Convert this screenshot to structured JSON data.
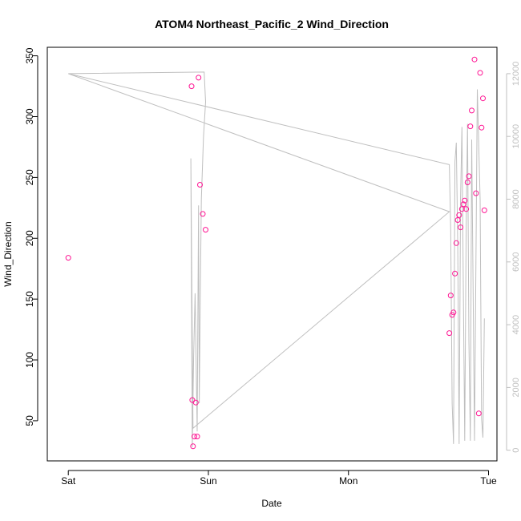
{
  "chart_data": {
    "type": "scatter",
    "title": "ATOM4 Northeast_Pacific_2 Wind_Direction",
    "xlabel": "Date",
    "ylabel": "Wind_Direction",
    "x_ticks": [
      "Sat",
      "Sun",
      "Mon",
      "Tue"
    ],
    "x_tick_values": [
      0,
      1,
      2,
      3
    ],
    "xlim": [
      -0.15,
      3.06
    ],
    "y_ticks": [
      50,
      100,
      150,
      200,
      250,
      300,
      350
    ],
    "ylim": [
      17,
      357
    ],
    "y2_ticks": [
      0,
      2000,
      4000,
      6000,
      8000,
      10000,
      12000
    ],
    "y2lim": [
      -340,
      12840
    ],
    "grid": false,
    "colors": {
      "points": "#ff1493",
      "line": "#bfbfbf",
      "right_axis": "#bfbfbf",
      "axes": "#000000"
    },
    "series": [
      {
        "values": [
          [
            0.0,
            184
          ],
          [
            0.88,
            325
          ],
          [
            0.885,
            67
          ],
          [
            0.89,
            29
          ],
          [
            0.9,
            37
          ],
          [
            0.91,
            65
          ],
          [
            0.92,
            37
          ],
          [
            0.93,
            332
          ],
          [
            0.94,
            244
          ],
          [
            0.96,
            220
          ],
          [
            0.98,
            207
          ],
          [
            2.72,
            122
          ],
          [
            2.73,
            153
          ],
          [
            2.74,
            137
          ],
          [
            2.75,
            139
          ],
          [
            2.76,
            171
          ],
          [
            2.77,
            196
          ],
          [
            2.78,
            215
          ],
          [
            2.79,
            219
          ],
          [
            2.8,
            209
          ],
          [
            2.81,
            224
          ],
          [
            2.82,
            228
          ],
          [
            2.83,
            231
          ],
          [
            2.84,
            224
          ],
          [
            2.85,
            246
          ],
          [
            2.86,
            251
          ],
          [
            2.87,
            292
          ],
          [
            2.88,
            305
          ],
          [
            2.9,
            347
          ],
          [
            2.91,
            237
          ],
          [
            2.93,
            56
          ],
          [
            2.94,
            336
          ],
          [
            2.95,
            291
          ],
          [
            2.96,
            315
          ],
          [
            2.97,
            223
          ]
        ]
      },
      {
        "axis": "right",
        "values": [
          [
            0.0,
            12000
          ],
          [
            0.97,
            12050
          ],
          [
            0.98,
            11100
          ],
          [
            0.965,
            10000
          ],
          [
            0.95,
            8000
          ],
          [
            0.94,
            4000
          ],
          [
            0.935,
            1500
          ],
          [
            0.93,
            7800
          ],
          [
            0.92,
            600
          ],
          [
            0.905,
            5000
          ],
          [
            0.895,
            3000
          ],
          [
            0.885,
            100
          ],
          [
            0.875,
            9300
          ],
          [
            0.89,
            700
          ],
          [
            2.72,
            7600
          ],
          [
            0.0,
            12000
          ],
          [
            2.72,
            9100
          ],
          [
            2.73,
            7000
          ],
          [
            2.74,
            1500
          ],
          [
            2.75,
            200
          ],
          [
            2.76,
            9200
          ],
          [
            2.77,
            9800
          ],
          [
            2.78,
            6500
          ],
          [
            2.79,
            200
          ],
          [
            2.8,
            8000
          ],
          [
            2.81,
            10300
          ],
          [
            2.82,
            5000
          ],
          [
            2.83,
            300
          ],
          [
            2.84,
            7200
          ],
          [
            2.85,
            10400
          ],
          [
            2.86,
            3500
          ],
          [
            2.87,
            300
          ],
          [
            2.88,
            9900
          ],
          [
            2.89,
            5000
          ],
          [
            2.9,
            300
          ],
          [
            2.92,
            11500
          ],
          [
            2.94,
            8000
          ],
          [
            2.95,
            1000
          ],
          [
            2.96,
            400
          ],
          [
            2.97,
            4200
          ]
        ]
      }
    ]
  }
}
